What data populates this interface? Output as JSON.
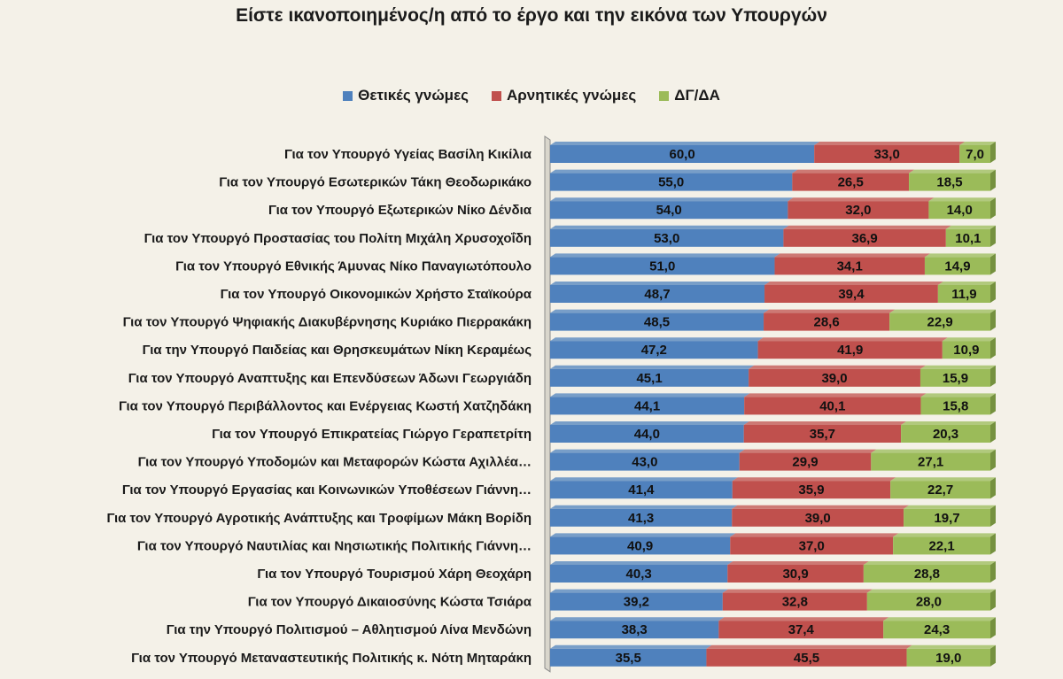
{
  "chart_data": {
    "type": "bar",
    "stacked": true,
    "orientation": "horizontal",
    "title": "Είστε ικανοποιημένος/η από το έργο και την εικόνα των Υπουργών",
    "legend_position": "top",
    "xlim": [
      0,
      100
    ],
    "categories": [
      "Για τον Υπουργό Υγείας Βασίλη Κικίλια",
      "Για τον Υπουργό Εσωτερικών Τάκη Θεοδωρικάκο",
      "Για τον Υπουργό Εξωτερικών Νίκο Δένδια",
      "Για τον Υπουργό Προστασίας του Πολίτη Μιχάλη Χρυσοχοΐδη",
      "Για τον Υπουργό Εθνικής Άμυνας Νίκο Παναγιωτόπουλο",
      "Για τον Υπουργό Οικονομικών Χρήστο Σταϊκούρα",
      "Για τον Υπουργό Ψηφιακής Διακυβέρνησης Κυριάκο Πιερρακάκη",
      "Για την Υπουργό Παιδείας και Θρησκευμάτων Νίκη Κεραμέως",
      "Για τον Υπουργό Αναπτυξης και Επενδύσεων Άδωνι Γεωργιάδη",
      "Για τον Υπουργό Περιβάλλοντος και Ενέργειας Κωστή Χατζηδάκη",
      "Για τον Υπουργό Επικρατείας Γιώργο Γεραπετρίτη",
      "Για τον Υπουργό Υποδομών και Μεταφορών Κώστα Αχιλλέα…",
      "Για τον Υπουργό Εργασίας και Κοινωνικών Υποθέσεων Γιάννη…",
      "Για τον Υπουργό Αγροτικής Ανάπτυξης και Τροφίμων Μάκη Βορίδη",
      "Για τον Υπουργό Ναυτιλίας και Νησιωτικής Πολιτικής Γιάννη…",
      "Για τον Υπουργό Τουρισμού Χάρη Θεοχάρη",
      "Για τον Υπουργό Δικαιοσύνης Κώστα Τσιάρα",
      "Για την Υπουργό Πολιτισμού – Αθλητισμού Λίνα Μενδώνη",
      "Για τον Υπουργό Μεταναστευτικής Πολιτικής κ. Νότη Μηταράκη"
    ],
    "series": [
      {
        "name": "Θετικές γνώμες",
        "color": "#4f81bd",
        "values": [
          60.0,
          55.0,
          54.0,
          53.0,
          51.0,
          48.7,
          48.5,
          47.2,
          45.1,
          44.1,
          44.0,
          43.0,
          41.4,
          41.3,
          40.9,
          40.3,
          39.2,
          38.3,
          35.5
        ],
        "labels": [
          "60,0",
          "55,0",
          "54,0",
          "53,0",
          "51,0",
          "48,7",
          "48,5",
          "47,2",
          "45,1",
          "44,1",
          "44,0",
          "43,0",
          "41,4",
          "41,3",
          "40,9",
          "40,3",
          "39,2",
          "38,3",
          "35,5"
        ]
      },
      {
        "name": "Αρνητικές γνώμες",
        "color": "#c0504d",
        "values": [
          33.0,
          26.5,
          32.0,
          36.9,
          34.1,
          39.4,
          28.6,
          41.9,
          39.0,
          40.1,
          35.7,
          29.9,
          35.9,
          39.0,
          37.0,
          30.9,
          32.8,
          37.4,
          45.5
        ],
        "labels": [
          "33,0",
          "26,5",
          "32,0",
          "36,9",
          "34,1",
          "39,4",
          "28,6",
          "41,9",
          "39,0",
          "40,1",
          "35,7",
          "29,9",
          "35,9",
          "39,0",
          "37,0",
          "30,9",
          "32,8",
          "37,4",
          "45,5"
        ]
      },
      {
        "name": "ΔΓ/ΔΑ",
        "color": "#9bbb59",
        "values": [
          7.0,
          18.5,
          14.0,
          10.1,
          14.9,
          11.9,
          22.9,
          10.9,
          15.9,
          15.8,
          20.3,
          27.1,
          22.7,
          19.7,
          22.1,
          28.8,
          28.0,
          24.3,
          19.0
        ],
        "labels": [
          "7,0",
          "18,5",
          "14,0",
          "10,1",
          "14,9",
          "11,9",
          "22,9",
          "10,9",
          "15,9",
          "15,8",
          "20,3",
          "27,1",
          "22,7",
          "19,7",
          "22,1",
          "28,8",
          "28,0",
          "24,3",
          "19,0"
        ]
      }
    ]
  }
}
